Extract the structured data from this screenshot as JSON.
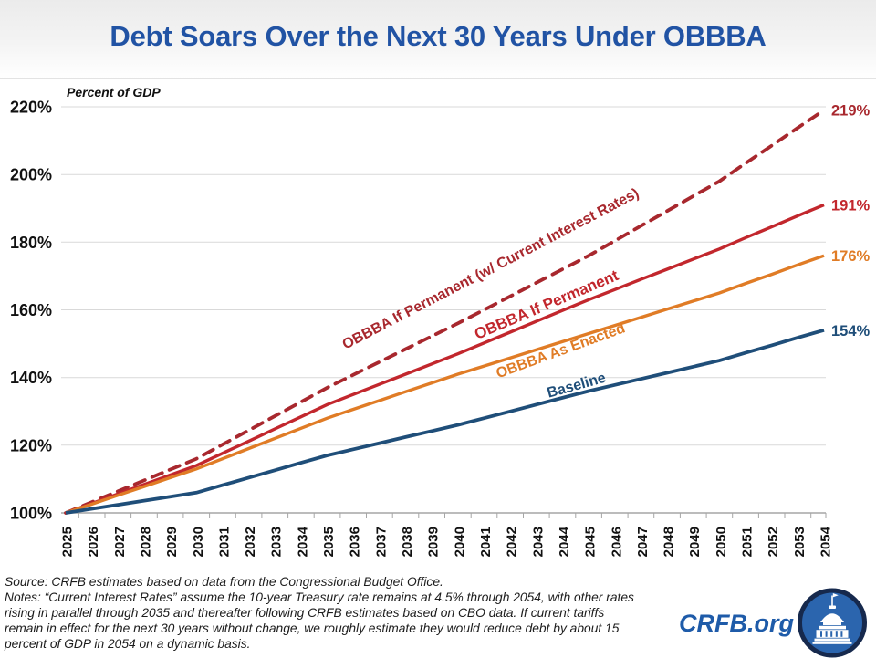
{
  "title": "Debt Soars Over the Next 30 Years Under OBBBA",
  "axis_note": "Percent of GDP",
  "footer": {
    "source": "Source: CRFB estimates based on data from the Congressional Budget Office.",
    "notes": "Notes: “Current Interest Rates” assume the 10-year Treasury rate remains at 4.5% through 2054, with other rates\nrising in parallel through 2035 and thereafter following CRFB estimates based on CBO data. If current tariffs\nremain in effect for the next 30 years without change, we roughly estimate they would reduce debt by about 15\npercent of GDP in 2054 on a dynamic basis.",
    "brand": "CRFB.org"
  },
  "colors": {
    "title_blue": "#2153A4",
    "brand_blue": "#1E5BA9",
    "grid": "#D9D9D9",
    "axis": "#A6A6A6",
    "tick_text": "#111111",
    "logo_ring": "#16294D",
    "logo_fill": "#2B65AE"
  },
  "chart_data": {
    "type": "line",
    "title": "Debt Soars Over the Next 30 Years Under OBBBA",
    "xlabel": "",
    "ylabel": "Percent of GDP",
    "x": [
      2025,
      2026,
      2027,
      2028,
      2029,
      2030,
      2031,
      2032,
      2033,
      2034,
      2035,
      2036,
      2037,
      2038,
      2039,
      2040,
      2041,
      2042,
      2043,
      2044,
      2045,
      2046,
      2047,
      2048,
      2049,
      2050,
      2051,
      2052,
      2053,
      2054
    ],
    "ylim": [
      100,
      220
    ],
    "yticks": [
      100,
      120,
      140,
      160,
      180,
      200,
      220
    ],
    "grid": true,
    "legend_position": "inline-labels",
    "series": [
      {
        "name": "OBBBA If Permanent (w/ Current Interest Rates)",
        "color": "#A8282E",
        "dash": true,
        "end_label": "219%",
        "values": [
          100,
          103.2,
          106.4,
          109.6,
          112.8,
          116,
          120.2,
          124.4,
          128.6,
          132.8,
          137,
          140.8,
          144.6,
          148.4,
          152.2,
          156,
          160,
          164,
          168,
          172,
          176,
          180.4,
          184.8,
          189.2,
          193.6,
          198,
          203.3,
          208.5,
          213.8,
          219
        ]
      },
      {
        "name": "OBBBA If Permanent",
        "color": "#C2272D",
        "dash": false,
        "end_label": "191%",
        "values": [
          100,
          102.8,
          105.6,
          108.4,
          111.2,
          114,
          117.6,
          121.2,
          124.8,
          128.4,
          132,
          135,
          138,
          141,
          144,
          147,
          150.2,
          153.4,
          156.6,
          159.8,
          163,
          166,
          169,
          172,
          175,
          178,
          181.3,
          184.5,
          187.8,
          191
        ]
      },
      {
        "name": "OBBBA As Enacted",
        "color": "#E07C26",
        "dash": false,
        "end_label": "176%",
        "values": [
          100,
          102.6,
          105.2,
          107.8,
          110.4,
          113,
          116,
          119,
          122,
          125,
          128,
          130.6,
          133.2,
          135.8,
          138.4,
          141,
          143.4,
          145.8,
          148.2,
          150.6,
          153,
          155.4,
          157.8,
          160.2,
          162.6,
          165,
          167.8,
          170.5,
          173.3,
          176
        ]
      },
      {
        "name": "Baseline",
        "color": "#1F4E79",
        "dash": false,
        "end_label": "154%",
        "values": [
          100,
          101.2,
          102.4,
          103.6,
          104.8,
          106,
          108.2,
          110.4,
          112.6,
          114.8,
          117,
          118.8,
          120.6,
          122.4,
          124.2,
          126,
          128,
          130,
          132,
          134,
          136,
          137.8,
          139.6,
          141.4,
          143.2,
          145,
          147.3,
          149.5,
          151.8,
          154
        ]
      }
    ]
  }
}
